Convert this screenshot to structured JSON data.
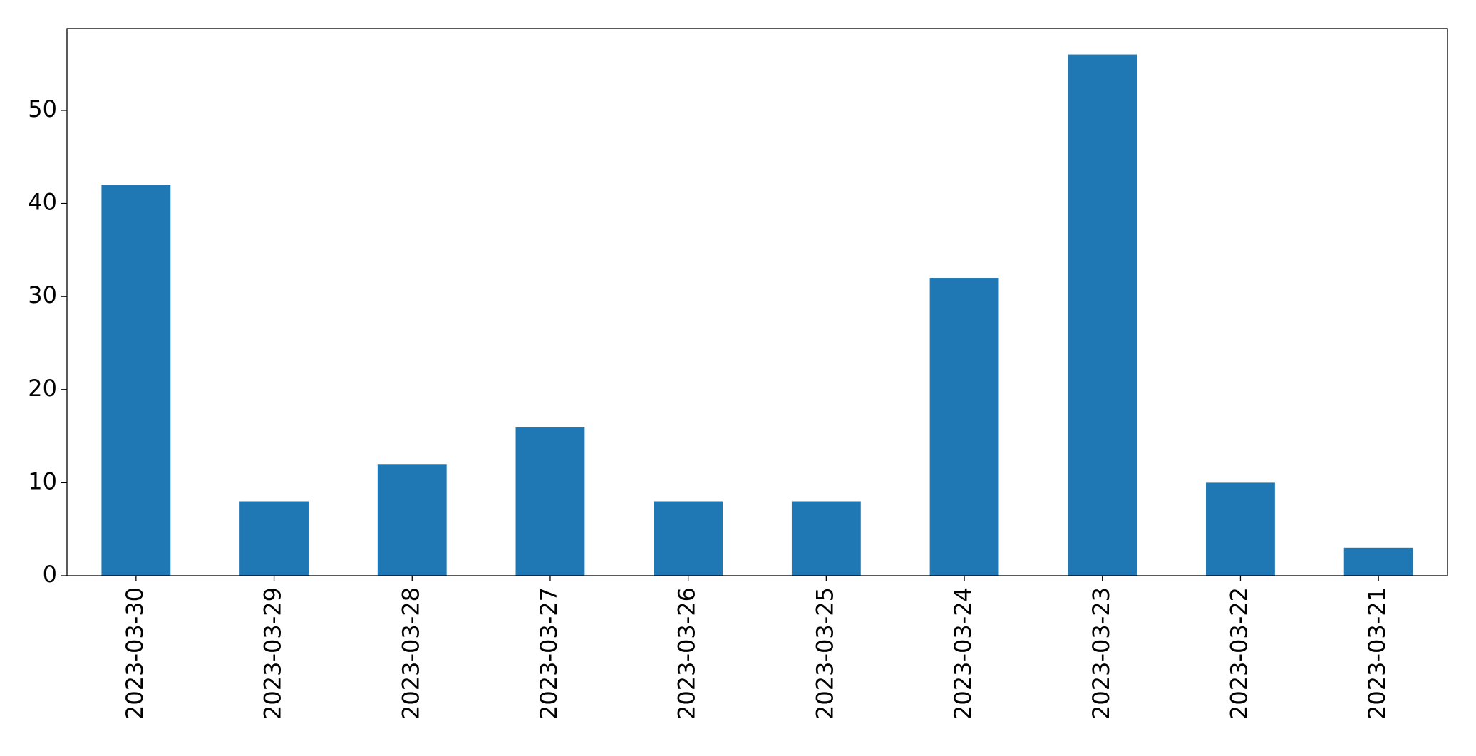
{
  "chart_data": {
    "type": "bar",
    "categories": [
      "2023-03-30",
      "2023-03-29",
      "2023-03-28",
      "2023-03-27",
      "2023-03-26",
      "2023-03-25",
      "2023-03-24",
      "2023-03-23",
      "2023-03-22",
      "2023-03-21"
    ],
    "values": [
      42,
      8,
      12,
      16,
      8,
      8,
      32,
      56,
      10,
      3
    ],
    "color": "#1f77b4",
    "ylim": [
      0,
      58.8
    ],
    "yticks": [
      0,
      10,
      20,
      30,
      40,
      50
    ],
    "grid": false
  }
}
